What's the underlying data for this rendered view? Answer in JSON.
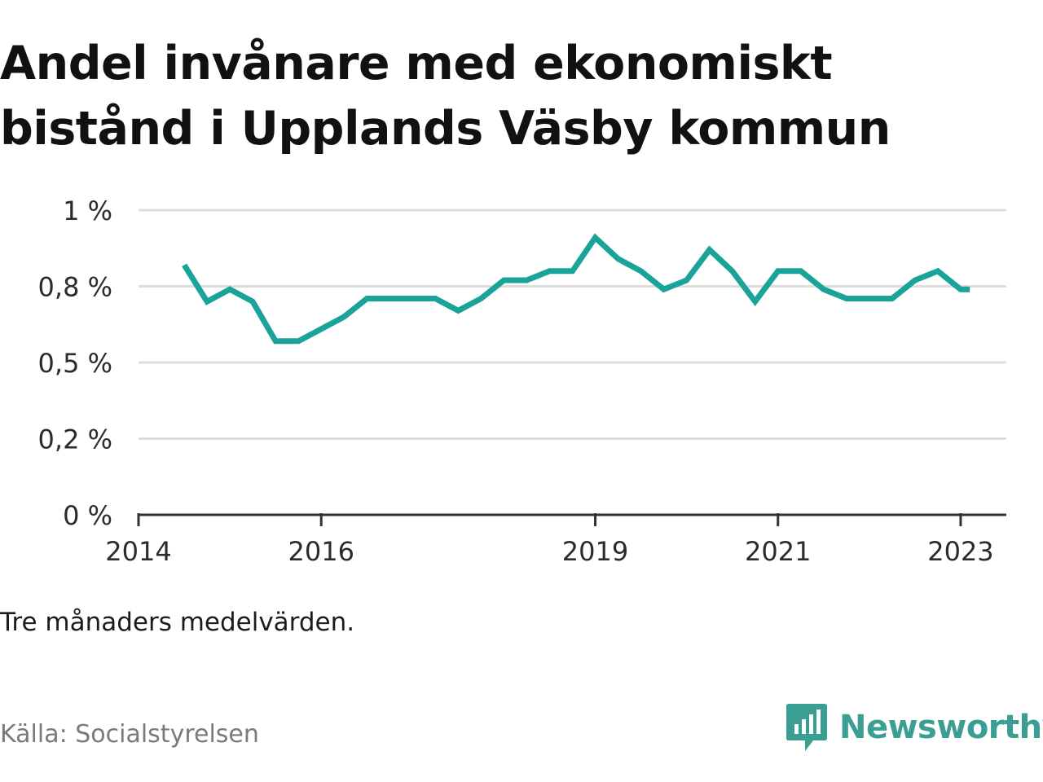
{
  "title": "Andel invånare med ekonomiskt bistånd i Upplands Väsby kommun",
  "note": "Tre månaders medelvärden.",
  "source": "Källa: Socialstyrelsen",
  "brand": {
    "name": "Newsworthy",
    "color": "#3a9e93",
    "icon": "newsworthy-logo-icon"
  },
  "colors": {
    "line": "#1aa399",
    "grid": "#dddddd",
    "axis": "#333333"
  },
  "chart_data": {
    "type": "line",
    "title": "Andel invånare med ekonomiskt bistånd i Upplands Väsby kommun",
    "xlabel": "",
    "ylabel": "",
    "x_unit": "year",
    "xlim": [
      2014,
      2023.5
    ],
    "ylim": [
      0,
      1
    ],
    "yticks": [
      0,
      0.25,
      0.5,
      0.75,
      1
    ],
    "ytick_labels": [
      "0 %",
      "0,2 %",
      "0,5 %",
      "0,8 %",
      "1 %"
    ],
    "xticks": [
      2014,
      2016,
      2019,
      2021,
      2023
    ],
    "xtick_labels": [
      "2014",
      "2016",
      "2019",
      "2021",
      "2023"
    ],
    "grid": true,
    "legend": "none",
    "series": [
      {
        "x": [
          2014.5,
          2014.75,
          2015.0,
          2015.25,
          2015.5,
          2015.75,
          2016.0,
          2016.25,
          2016.5,
          2016.75,
          2017.0,
          2017.25,
          2017.5,
          2017.75,
          2018.0,
          2018.25,
          2018.5,
          2018.75,
          2019.0,
          2019.25,
          2019.5,
          2019.75,
          2020.0,
          2020.25,
          2020.5,
          2020.75,
          2021.0,
          2021.25,
          2021.5,
          2021.75,
          2022.0,
          2022.25,
          2022.5,
          2022.75,
          2023.0,
          2023.1
        ],
        "values": [
          0.82,
          0.7,
          0.74,
          0.7,
          0.57,
          0.57,
          0.61,
          0.65,
          0.71,
          0.71,
          0.71,
          0.71,
          0.67,
          0.71,
          0.77,
          0.77,
          0.8,
          0.8,
          0.91,
          0.84,
          0.8,
          0.74,
          0.77,
          0.87,
          0.8,
          0.7,
          0.8,
          0.8,
          0.74,
          0.71,
          0.71,
          0.71,
          0.77,
          0.8,
          0.74,
          0.74
        ]
      }
    ]
  }
}
